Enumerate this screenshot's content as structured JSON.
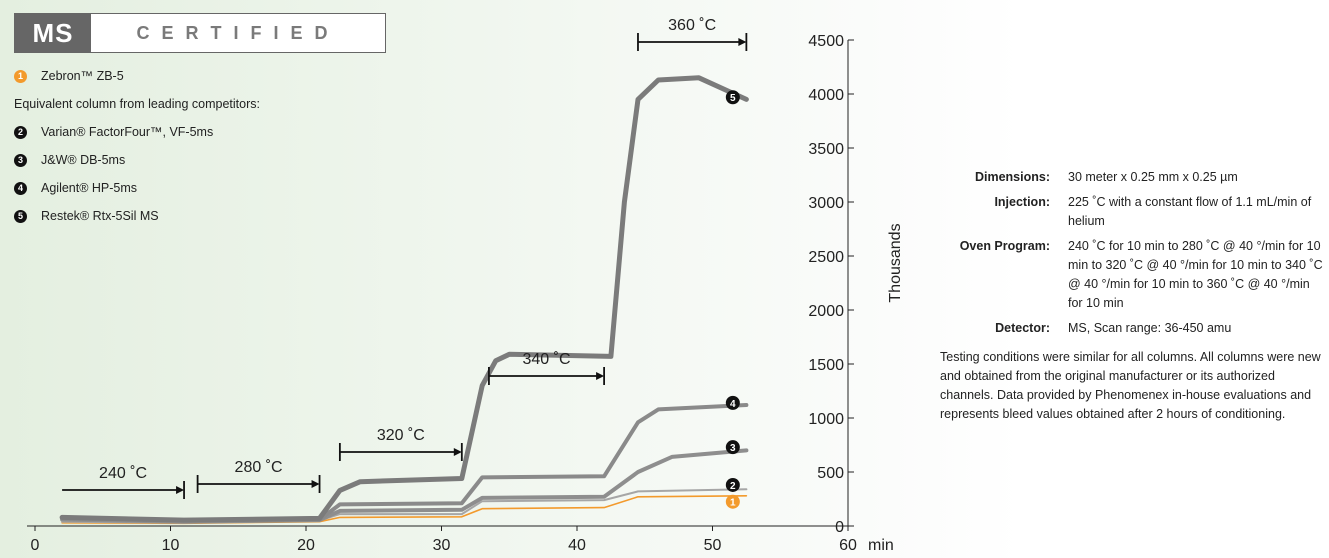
{
  "badge": {
    "ms": "MS",
    "certified": "CERTIFIED"
  },
  "legend": {
    "items": [
      {
        "num": "1",
        "label": "Zebron™ ZB-5",
        "color": "#f39a2c"
      },
      {
        "num": "",
        "label": "Equivalent column from leading competitors:"
      },
      {
        "num": "2",
        "label": "Varian® FactorFour™, VF-5ms",
        "color": "#111111"
      },
      {
        "num": "3",
        "label": "J&W® DB-5ms",
        "color": "#111111"
      },
      {
        "num": "4",
        "label": "Agilent® HP-5ms",
        "color": "#111111"
      },
      {
        "num": "5",
        "label": "Restek® Rtx-5Sil MS",
        "color": "#111111"
      }
    ]
  },
  "info": {
    "rows": [
      {
        "label": "Dimensions:",
        "value": "30 meter x 0.25 mm x 0.25 µm"
      },
      {
        "label": "Injection:",
        "value": "225 ˚C with a constant flow of 1.1 mL/min of helium"
      },
      {
        "label": "Oven Program:",
        "value": "240 ˚C for 10 min to 280 ˚C @ 40 °/min for 10 min to 320 ˚C @ 40 °/min for 10 min to 340 ˚C @ 40 °/min for 10 min to 360 ˚C @ 40 °/min for 10 min"
      },
      {
        "label": "Detector:",
        "value": "MS, Scan range: 36-450 amu"
      }
    ],
    "note": "Testing conditions were similar for all columns. All columns were new and obtained from the original manufacturer or its authorized channels. Data provided by Phenomenex in-house evaluations and represents bleed values obtained after 2 hours of conditioning."
  },
  "chart_data": {
    "type": "line",
    "xlabel": "min",
    "ylabel": "Thousands",
    "xlim": [
      0,
      60
    ],
    "ylim": [
      0,
      4500
    ],
    "x_ticks": [
      0,
      10,
      20,
      30,
      40,
      50,
      60
    ],
    "y_ticks": [
      0,
      500,
      1000,
      1500,
      2000,
      2500,
      3000,
      3500,
      4000,
      4500
    ],
    "temperature_annotations": [
      {
        "label": "240 ˚C",
        "x_start": 2,
        "x_end": 11
      },
      {
        "label": "280 ˚C",
        "x_start": 12,
        "x_end": 21
      },
      {
        "label": "320 ˚C",
        "x_start": 22.5,
        "x_end": 31.5
      },
      {
        "label": "340 ˚C",
        "x_start": 33.5,
        "x_end": 42
      },
      {
        "label": "360 ˚C",
        "x_start": 44.5,
        "x_end": 52.5
      }
    ],
    "series": [
      {
        "name": "1",
        "color": "#f39a2c",
        "width": 1.6,
        "points": [
          [
            2,
            30
          ],
          [
            11,
            25
          ],
          [
            21,
            40
          ],
          [
            22.5,
            80
          ],
          [
            31.5,
            85
          ],
          [
            33,
            160
          ],
          [
            42,
            170
          ],
          [
            44.5,
            270
          ],
          [
            52.5,
            280
          ]
        ]
      },
      {
        "name": "2",
        "color": "#a6a6a6",
        "width": 2,
        "points": [
          [
            2,
            40
          ],
          [
            11,
            30
          ],
          [
            21,
            50
          ],
          [
            22.5,
            110
          ],
          [
            31.5,
            110
          ],
          [
            33,
            230
          ],
          [
            42,
            240
          ],
          [
            44.5,
            320
          ],
          [
            52.5,
            340
          ]
        ]
      },
      {
        "name": "3",
        "color": "#8e8e8e",
        "width": 4,
        "points": [
          [
            2,
            60
          ],
          [
            11,
            40
          ],
          [
            21,
            55
          ],
          [
            22.5,
            140
          ],
          [
            31.5,
            150
          ],
          [
            33,
            260
          ],
          [
            42,
            270
          ],
          [
            44.5,
            500
          ],
          [
            47,
            640
          ],
          [
            52.5,
            700
          ]
        ]
      },
      {
        "name": "4",
        "color": "#8a8a8a",
        "width": 4,
        "points": [
          [
            2,
            70
          ],
          [
            11,
            50
          ],
          [
            21,
            60
          ],
          [
            22.5,
            200
          ],
          [
            31.5,
            210
          ],
          [
            33,
            450
          ],
          [
            42,
            460
          ],
          [
            44.5,
            960
          ],
          [
            46,
            1080
          ],
          [
            52.5,
            1120
          ]
        ]
      },
      {
        "name": "5",
        "color": "#7b7b7b",
        "width": 5,
        "points": [
          [
            2,
            80
          ],
          [
            11,
            55
          ],
          [
            21,
            70
          ],
          [
            22.5,
            330
          ],
          [
            24,
            410
          ],
          [
            31.5,
            440
          ],
          [
            33,
            1300
          ],
          [
            34,
            1530
          ],
          [
            35,
            1590
          ],
          [
            42.5,
            1570
          ],
          [
            43.5,
            3000
          ],
          [
            44.5,
            3950
          ],
          [
            46,
            4130
          ],
          [
            49,
            4150
          ],
          [
            52.5,
            3950
          ]
        ]
      }
    ],
    "series_markers": [
      {
        "label": "5",
        "x": 51.5,
        "y": 3970,
        "color": "#111111"
      },
      {
        "label": "4",
        "x": 51.5,
        "y": 1140,
        "color": "#111111"
      },
      {
        "label": "3",
        "x": 51.5,
        "y": 730,
        "color": "#111111"
      },
      {
        "label": "2",
        "x": 51.5,
        "y": 380,
        "color": "#111111"
      },
      {
        "label": "1",
        "x": 51.5,
        "y": 225,
        "color": "#f39a2c"
      }
    ]
  }
}
